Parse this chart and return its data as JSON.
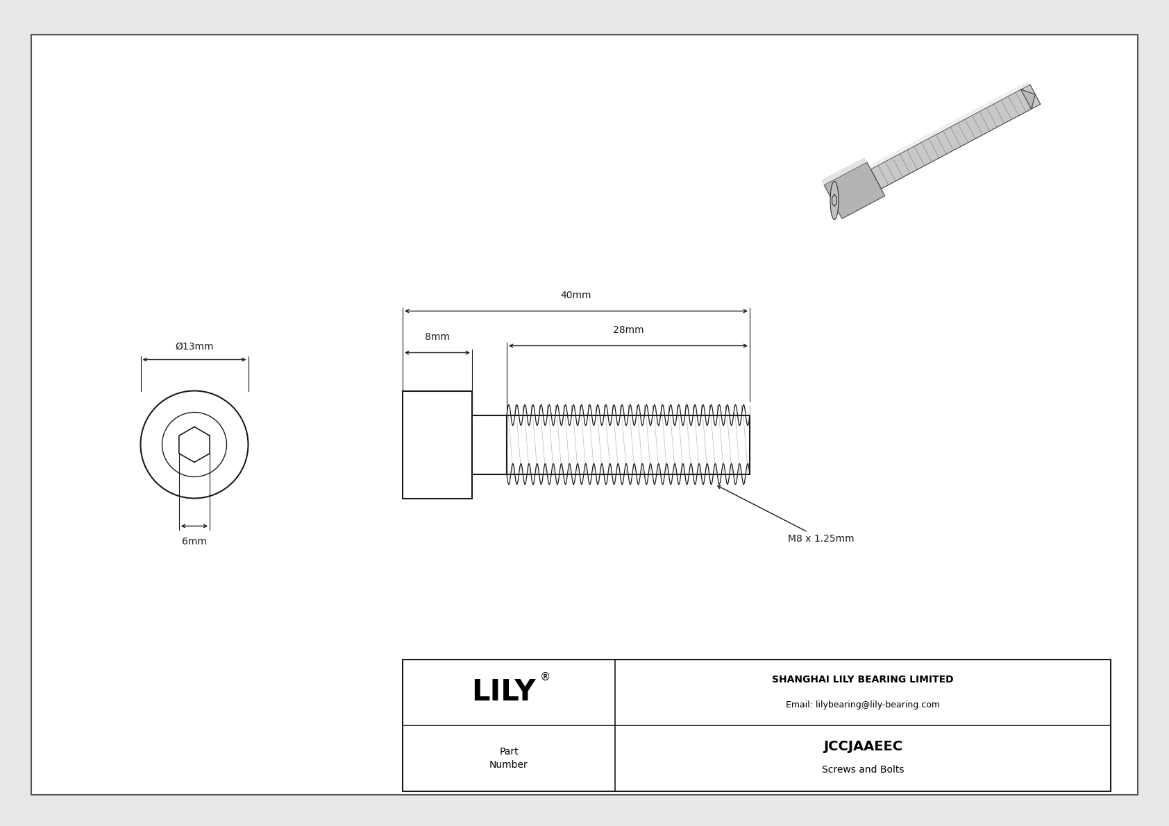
{
  "bg_color": "#e8e8e8",
  "drawing_bg": "#f5f5f5",
  "inner_bg": "#ffffff",
  "line_color": "#1a1a1a",
  "dim_color": "#1a1a1a",
  "title_company": "SHANGHAI LILY BEARING LIMITED",
  "title_email": "Email: lilybearing@lily-bearing.com",
  "part_number": "JCCJAAEEC",
  "part_category": "Screws and Bolts",
  "brand": "LILY",
  "dim_diameter": "Ø13mm",
  "dim_hex": "6mm",
  "dim_head_length": "8mm",
  "dim_total_length": "40mm",
  "dim_thread_length": "28mm",
  "dim_thread_spec": "M8 x 1.25mm",
  "border_color": "#555555"
}
